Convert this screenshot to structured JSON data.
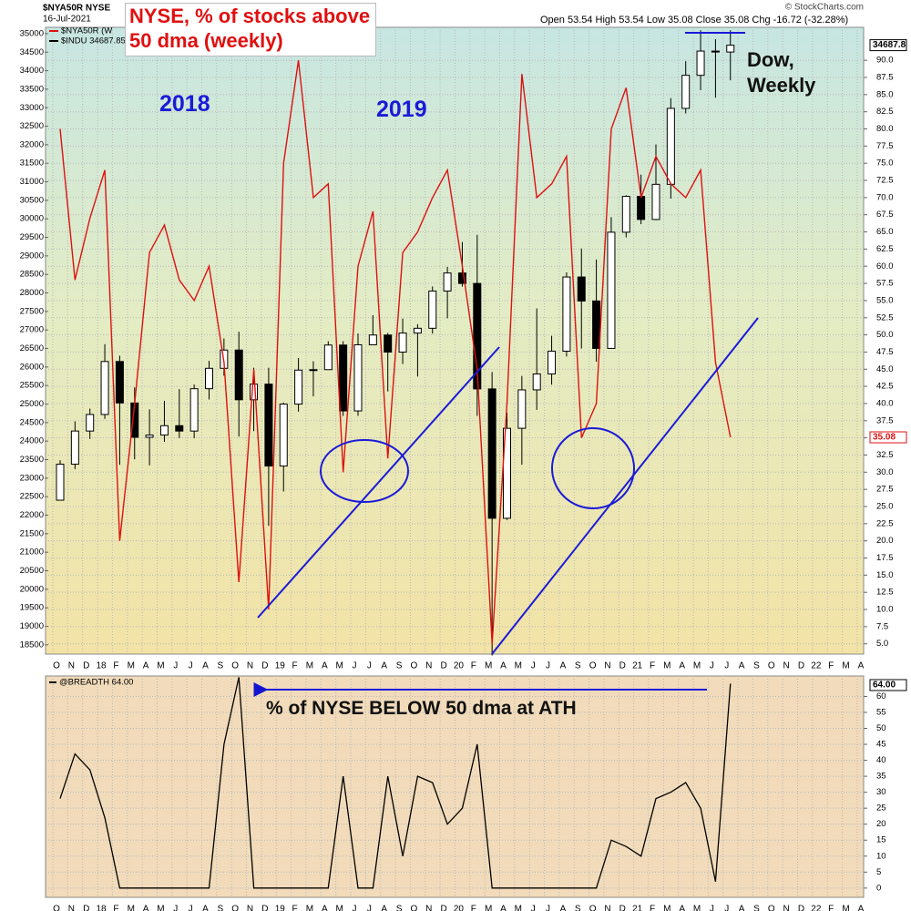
{
  "chart_data": [
    {
      "type": "candlestick",
      "title": "$NYA50R NYSE",
      "subtitle": "16-Jul-2021",
      "quote": "Open 53.54 High 53.54 Low 35.08 Close 35.08 Chg -16.72 (-32.28%)",
      "credit": "© StockCharts.com",
      "annotations": [
        "NYSE, % of stocks above 50 dma (weekly)",
        "2018",
        "2019",
        "Dow, Weekly"
      ],
      "categories": [
        "O",
        "N",
        "D",
        "18",
        "F",
        "M",
        "A",
        "M",
        "J",
        "J",
        "A",
        "S",
        "O",
        "N",
        "D",
        "19",
        "F",
        "M",
        "A",
        "M",
        "J",
        "J",
        "A",
        "S",
        "O",
        "N",
        "D",
        "20",
        "F",
        "M",
        "A",
        "M",
        "J",
        "J",
        "A",
        "S",
        "O",
        "N",
        "D",
        "21",
        "F",
        "M",
        "A",
        "M",
        "J",
        "J",
        "A",
        "S",
        "O",
        "N",
        "D",
        "22",
        "F",
        "M",
        "A"
      ],
      "ylim": [
        18250,
        35170
      ],
      "yticks": [
        18500,
        19000,
        19500,
        20000,
        20500,
        21000,
        21500,
        22000,
        22500,
        23000,
        23500,
        24000,
        24500,
        25000,
        25500,
        26000,
        26500,
        27000,
        27500,
        28000,
        28500,
        29000,
        29500,
        30000,
        30500,
        31000,
        31500,
        32000,
        32500,
        33000,
        33500,
        34000,
        34500,
        35000
      ],
      "y2lim": [
        3.5,
        94.8
      ],
      "y2ticks": [
        {
          "value": 5,
          "label": "5.0"
        },
        {
          "value": 7.5,
          "label": "7.5"
        },
        {
          "value": 10,
          "label": "10.0"
        },
        {
          "value": 12.5,
          "label": "12.5"
        },
        {
          "value": 15,
          "label": "15.0"
        },
        {
          "value": 17.5,
          "label": "17.5"
        },
        {
          "value": 20,
          "label": "20.0"
        },
        {
          "value": 22.5,
          "label": "22.5"
        },
        {
          "value": 25,
          "label": "25.0"
        },
        {
          "value": 27.5,
          "label": "27.5"
        },
        {
          "value": 30,
          "label": "30.0"
        },
        {
          "value": 32.5,
          "label": "32.5"
        },
        {
          "value": 35,
          "label": "35.0"
        },
        {
          "value": 37.5,
          "label": "37.5"
        },
        {
          "value": 40,
          "label": "40.0"
        },
        {
          "value": 42.5,
          "label": "42.5"
        },
        {
          "value": 45,
          "label": "45.0"
        },
        {
          "value": 47.5,
          "label": "47.5"
        },
        {
          "value": 50,
          "label": "50.0"
        },
        {
          "value": 52.5,
          "label": "52.5"
        },
        {
          "value": 55,
          "label": "55.0"
        },
        {
          "value": 57.5,
          "label": "57.5"
        },
        {
          "value": 60,
          "label": "60.0"
        },
        {
          "value": 62.5,
          "label": "62.5"
        },
        {
          "value": 65,
          "label": "65.0"
        },
        {
          "value": 67.5,
          "label": "67.5"
        },
        {
          "value": 70,
          "label": "70.0"
        },
        {
          "value": 72.5,
          "label": "72.5"
        },
        {
          "value": 75,
          "label": "75.0"
        },
        {
          "value": 77.5,
          "label": "77.5"
        },
        {
          "value": 80,
          "label": "80.0"
        },
        {
          "value": 82.5,
          "label": "82.5"
        },
        {
          "value": 85,
          "label": "85.0"
        },
        {
          "value": 87.5,
          "label": "87.5"
        },
        {
          "value": 90,
          "label": "90.0"
        }
      ],
      "grid": true,
      "series": [
        {
          "name": "$INDU 34687.85",
          "color": "#000000",
          "last_label": "34687.8",
          "open": [
            22405,
            23377,
            24272,
            24719,
            26149,
            25029,
            24103,
            24163,
            24416,
            24271,
            25415,
            25965,
            26458,
            25116,
            25538,
            23327,
            24999,
            25916,
            25929,
            26593,
            24815,
            26600,
            26864,
            26403,
            26917,
            27046,
            28051,
            28538,
            28256,
            25409,
            21917,
            24346,
            25383,
            25813,
            26428,
            28430,
            27782,
            26502,
            29639,
            30606,
            29983,
            30932,
            32982,
            33875,
            34529,
            34503,
            null,
            null,
            null,
            null,
            null,
            null,
            null,
            null,
            null
          ],
          "high": [
            23485,
            24534,
            24877,
            26617,
            26307,
            25450,
            24859,
            25087,
            25403,
            25527,
            26168,
            26770,
            26952,
            25981,
            25980,
            25040,
            26241,
            26156,
            26696,
            26696,
            26908,
            27399,
            26920,
            27307,
            27156,
            28175,
            28702,
            29374,
            29569,
            25864,
            24765,
            25759,
            27581,
            26841,
            28555,
            29199,
            28902,
            30046,
            30637,
            31193,
            32010,
            33259,
            34257,
            35092,
            34850,
            35092,
            null,
            null,
            null,
            null,
            null,
            null,
            null,
            null,
            null
          ],
          "low": [
            22395,
            23242,
            24058,
            24600,
            23360,
            23509,
            23345,
            23981,
            24084,
            24077,
            25123,
            25763,
            24122,
            24269,
            21713,
            22639,
            24795,
            25208,
            25984,
            24680,
            24680,
            26609,
            25340,
            26080,
            25743,
            26900,
            27314,
            28170,
            24681,
            18214,
            21870,
            23361,
            24843,
            25524,
            26284,
            26500,
            26143,
            26500,
            29499,
            29856,
            29962,
            30548,
            32846,
            33474,
            33271,
            33741,
            null,
            null,
            null,
            null,
            null,
            null,
            null,
            null,
            null
          ],
          "close": [
            23377,
            24272,
            24719,
            26149,
            25029,
            24103,
            24163,
            24416,
            24271,
            25415,
            25965,
            26458,
            25116,
            25538,
            23327,
            24999,
            25916,
            25929,
            26593,
            24815,
            26600,
            26864,
            26403,
            26917,
            27046,
            28051,
            28538,
            28256,
            25409,
            21917,
            24346,
            25383,
            25813,
            26428,
            28430,
            27782,
            26502,
            29639,
            30606,
            29983,
            30932,
            32982,
            33875,
            34529,
            34503,
            34687.85,
            null,
            null,
            null,
            null,
            null,
            null,
            null,
            null,
            null
          ]
        },
        {
          "name": "$NYA50R (W",
          "color": "#dd1111",
          "axis": "y2",
          "last_label": "35.08",
          "values": [
            80,
            58,
            67,
            74,
            20,
            40,
            62,
            66,
            58,
            55,
            60,
            46,
            14,
            45,
            10,
            75,
            90,
            70,
            72,
            30,
            60,
            68,
            32,
            62,
            65,
            70,
            74,
            60,
            45,
            5,
            40,
            88,
            70,
            72,
            76,
            35,
            40,
            80,
            86,
            70,
            76,
            72,
            70,
            74,
            46,
            35.08,
            null,
            null,
            null,
            null,
            null,
            null,
            null,
            null,
            null
          ]
        }
      ]
    },
    {
      "type": "line",
      "annotations": [
        "% of NYSE BELOW 50 dma at ATH"
      ],
      "categories": [
        "O",
        "N",
        "D",
        "18",
        "F",
        "M",
        "A",
        "M",
        "J",
        "J",
        "A",
        "S",
        "O",
        "N",
        "D",
        "19",
        "F",
        "M",
        "A",
        "M",
        "J",
        "J",
        "A",
        "S",
        "O",
        "N",
        "D",
        "20",
        "F",
        "M",
        "A",
        "M",
        "J",
        "J",
        "A",
        "S",
        "O",
        "N",
        "D",
        "21",
        "F",
        "M",
        "A",
        "M",
        "J",
        "J",
        "A",
        "S",
        "O",
        "N",
        "D",
        "22",
        "F",
        "M",
        "A"
      ],
      "ylim": [
        -2.9,
        66.4
      ],
      "yticks": [
        0,
        5,
        10,
        15,
        20,
        25,
        30,
        35,
        40,
        45,
        50,
        55,
        60
      ],
      "grid": true,
      "series": [
        {
          "name": "@BREADTH 64.00",
          "color": "#000000",
          "last_label": "64.00",
          "values": [
            28,
            42,
            37,
            22,
            0,
            0,
            0,
            0,
            0,
            0,
            0,
            45,
            66,
            0,
            0,
            0,
            0,
            0,
            0,
            35,
            0,
            0,
            35,
            10,
            35,
            33,
            20,
            25,
            45,
            0,
            0,
            0,
            0,
            0,
            0,
            0,
            0,
            15,
            13,
            10,
            28,
            30,
            33,
            25,
            2,
            64,
            null,
            null,
            null,
            null,
            null,
            null,
            null,
            null,
            null
          ]
        }
      ]
    }
  ]
}
